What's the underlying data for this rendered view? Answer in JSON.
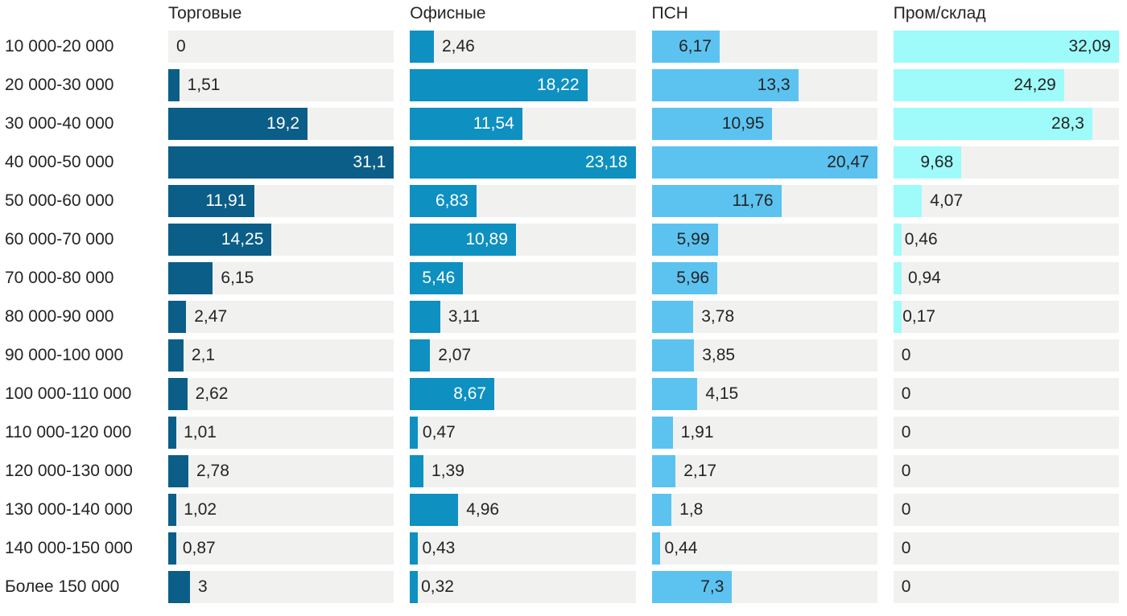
{
  "chart_data": {
    "type": "bar",
    "orientation": "horizontal",
    "title": "",
    "xlabel": "",
    "ylabel": "",
    "scaling": "each column scaled independently to its own max value",
    "grid": false,
    "legend_position": "column-headers-top",
    "track_color": "#f1f1f0",
    "outside_label_color": "#242424",
    "value_decimal_separator": ",",
    "categories": [
      "10 000-20 000",
      "20 000-30 000",
      "30 000-40 000",
      "40 000-50 000",
      "50 000-60 000",
      "60 000-70 000",
      "70 000-80 000",
      "80 000-90 000",
      "90 000-100 000",
      "100 000-110 000",
      "110 000-120 000",
      "120 000-130 000",
      "130 000-140 000",
      "140 000-150 000",
      "Более 150 000"
    ],
    "series": [
      {
        "name": "Торговые",
        "color": "#0b5e87",
        "inside_label_color": "#ffffff",
        "values": [
          0,
          1.51,
          19.2,
          31.1,
          11.91,
          14.25,
          6.15,
          2.47,
          2.1,
          2.62,
          1.01,
          2.78,
          1.02,
          0.87,
          3
        ]
      },
      {
        "name": "Офисные",
        "color": "#0e90c0",
        "inside_label_color": "#ffffff",
        "values": [
          2.46,
          18.22,
          11.54,
          23.18,
          6.83,
          10.89,
          5.46,
          3.11,
          2.07,
          8.67,
          0.47,
          1.39,
          4.96,
          0.43,
          0.32
        ]
      },
      {
        "name": "ПСН",
        "color": "#5cc3f0",
        "inside_label_color": "#242424",
        "values": [
          6.17,
          13.3,
          10.95,
          20.47,
          11.76,
          5.99,
          5.96,
          3.78,
          3.85,
          4.15,
          1.91,
          2.17,
          1.8,
          0.44,
          7.3
        ]
      },
      {
        "name": "Пром/склад",
        "color": "#9efbfa",
        "inside_label_color": "#242424",
        "values": [
          32.09,
          24.29,
          28.3,
          9.68,
          4.07,
          0.46,
          0.94,
          0.17,
          0,
          0,
          0,
          0,
          0,
          0,
          0
        ]
      }
    ]
  }
}
